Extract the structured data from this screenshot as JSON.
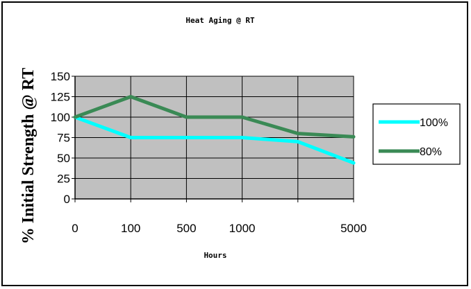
{
  "chart_data": {
    "type": "line",
    "title": "Heat Aging @ RT",
    "xlabel": "Hours",
    "ylabel": "% Initial Strength @ RT",
    "categories": [
      "0",
      "100",
      "500",
      "1000",
      "",
      "5000"
    ],
    "ylim": [
      0,
      150
    ],
    "yticks": [
      "0",
      "25",
      "50",
      "75",
      "100",
      "125",
      "150"
    ],
    "grid": true,
    "legend_position": "right",
    "series": [
      {
        "name": "100%",
        "color": "#00ffff",
        "values": [
          100,
          75,
          75,
          75,
          70,
          44
        ]
      },
      {
        "name": "80%",
        "color": "#3a8a55",
        "values": [
          100,
          125,
          100,
          100,
          80,
          76
        ]
      }
    ]
  }
}
